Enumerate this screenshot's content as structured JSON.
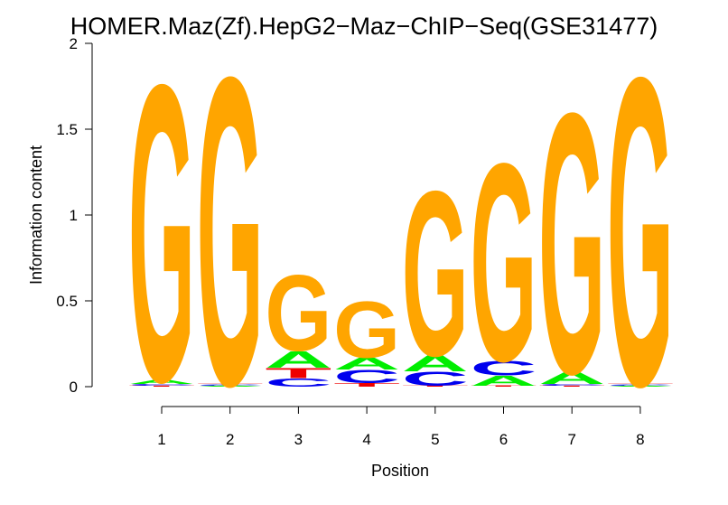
{
  "chart_data": {
    "type": "sequence-logo",
    "title": "HOMER.Maz(Zf).HepG2−Maz−ChIP−Seq(GSE31477)",
    "xlabel": "Position",
    "ylabel": "Information content",
    "ylim": [
      0,
      2
    ],
    "yticks": [
      "0",
      "0.5",
      "1",
      "1.5",
      "2"
    ],
    "positions": [
      "1",
      "2",
      "3",
      "4",
      "5",
      "6",
      "7",
      "8"
    ],
    "colors": {
      "A": "#00ee00",
      "C": "#0000ee",
      "G": "#ffa500",
      "T": "#ee0000"
    },
    "stacks": [
      [
        {
          "letter": "T",
          "height": 0.005
        },
        {
          "letter": "C",
          "height": 0.01
        },
        {
          "letter": "A",
          "height": 0.025
        },
        {
          "letter": "G",
          "height": 1.8
        }
      ],
      [
        {
          "letter": "A",
          "height": 0.005
        },
        {
          "letter": "C",
          "height": 0.005
        },
        {
          "letter": "T",
          "height": 0.007
        },
        {
          "letter": "G",
          "height": 1.87
        }
      ],
      [
        {
          "letter": "C",
          "height": 0.05
        },
        {
          "letter": "T",
          "height": 0.06
        },
        {
          "letter": "A",
          "height": 0.1
        },
        {
          "letter": "G",
          "height": 0.46
        }
      ],
      [
        {
          "letter": "T",
          "height": 0.02
        },
        {
          "letter": "C",
          "height": 0.08
        },
        {
          "letter": "A",
          "height": 0.07
        },
        {
          "letter": "G",
          "height": 0.34
        }
      ],
      [
        {
          "letter": "T",
          "height": 0.005
        },
        {
          "letter": "C",
          "height": 0.085
        },
        {
          "letter": "A",
          "height": 0.095
        },
        {
          "letter": "G",
          "height": 1.0
        }
      ],
      [
        {
          "letter": "T",
          "height": 0.005
        },
        {
          "letter": "A",
          "height": 0.06
        },
        {
          "letter": "C",
          "height": 0.09
        },
        {
          "letter": "G",
          "height": 1.2
        }
      ],
      [
        {
          "letter": "T",
          "height": 0.005
        },
        {
          "letter": "C",
          "height": 0.01
        },
        {
          "letter": "A",
          "height": 0.07
        },
        {
          "letter": "G",
          "height": 1.58
        }
      ],
      [
        {
          "letter": "A",
          "height": 0.005
        },
        {
          "letter": "C",
          "height": 0.005
        },
        {
          "letter": "T",
          "height": 0.005
        },
        {
          "letter": "G",
          "height": 1.87
        }
      ]
    ]
  }
}
